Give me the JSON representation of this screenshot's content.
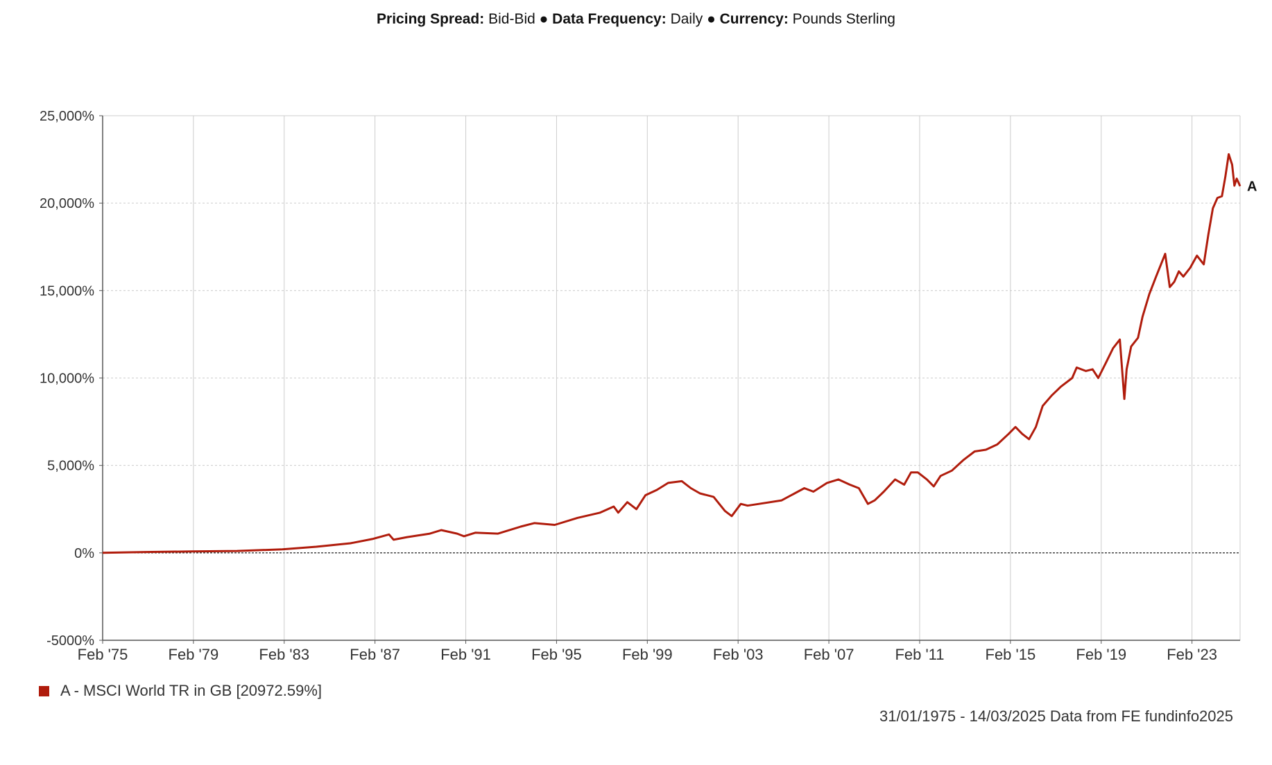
{
  "header": {
    "label1": "Pricing Spread:",
    "value1": "Bid-Bid",
    "label2": "Data Frequency:",
    "value2": "Daily",
    "label3": "Currency:",
    "value3": "Pounds Sterling",
    "separator": "●"
  },
  "legend": {
    "text": "A - MSCI World TR in GB [20972.59%]"
  },
  "source": {
    "text": "31/01/1975 - 14/03/2025 Data from FE fundinfo2025"
  },
  "colors": {
    "series": "#b01c0c",
    "grid": "#cccccc",
    "zero_line": "#333333",
    "axis": "#555555"
  },
  "chart_data": {
    "type": "line",
    "title": "",
    "xlabel": "",
    "ylabel": "",
    "ylim": [
      -5000,
      25000
    ],
    "xlim": [
      1975.08,
      2025.2
    ],
    "y_ticks": [
      25000,
      20000,
      15000,
      10000,
      5000,
      0,
      -5000
    ],
    "y_tick_labels": [
      "25,000%",
      "20,000%",
      "15,000%",
      "10,000%",
      "5,000%",
      "0%",
      "-5000%"
    ],
    "x_ticks": [
      1975.08,
      1979.08,
      1983.08,
      1987.08,
      1991.08,
      1995.08,
      1999.08,
      2003.08,
      2007.08,
      2011.08,
      2015.08,
      2019.08,
      2023.08
    ],
    "x_tick_labels": [
      "Feb '75",
      "Feb '79",
      "Feb '83",
      "Feb '87",
      "Feb '91",
      "Feb '95",
      "Feb '99",
      "Feb '03",
      "Feb '07",
      "Feb '11",
      "Feb '15",
      "Feb '19",
      "Feb '23"
    ],
    "grid": true,
    "legend_position": "bottom-left",
    "series": [
      {
        "name": "A - MSCI World TR in GB [20972.59%]",
        "end_label": "A",
        "x": [
          1975.08,
          1977.0,
          1979.0,
          1981.0,
          1983.0,
          1984.5,
          1986.0,
          1987.0,
          1987.7,
          1987.9,
          1988.5,
          1989.5,
          1990.0,
          1990.7,
          1991.0,
          1991.5,
          1992.5,
          1993.5,
          1994.1,
          1995.0,
          1996.0,
          1997.0,
          1997.6,
          1997.8,
          1998.2,
          1998.6,
          1999.0,
          1999.5,
          2000.0,
          2000.6,
          2001.0,
          2001.4,
          2002.0,
          2002.5,
          2002.8,
          2003.2,
          2003.5,
          2004.0,
          2005.0,
          2006.0,
          2006.4,
          2007.0,
          2007.5,
          2008.0,
          2008.4,
          2008.8,
          2009.1,
          2009.5,
          2010.0,
          2010.4,
          2010.7,
          2011.0,
          2011.4,
          2011.7,
          2012.0,
          2012.5,
          2013.0,
          2013.5,
          2014.0,
          2014.5,
          2015.0,
          2015.3,
          2015.6,
          2015.9,
          2016.2,
          2016.5,
          2016.9,
          2017.3,
          2017.8,
          2018.0,
          2018.4,
          2018.7,
          2018.95,
          2019.3,
          2019.6,
          2019.9,
          2020.1,
          2020.2,
          2020.4,
          2020.7,
          2020.9,
          2021.2,
          2021.5,
          2021.9,
          2022.1,
          2022.3,
          2022.5,
          2022.7,
          2023.0,
          2023.3,
          2023.6,
          2023.8,
          2024.0,
          2024.2,
          2024.4,
          2024.55,
          2024.7,
          2024.85,
          2024.95,
          2025.05,
          2025.2
        ],
        "y": [
          0,
          50,
          80,
          110,
          200,
          350,
          550,
          800,
          1050,
          750,
          900,
          1100,
          1300,
          1100,
          950,
          1150,
          1100,
          1500,
          1700,
          1600,
          2000,
          2300,
          2650,
          2300,
          2900,
          2500,
          3300,
          3600,
          4000,
          4100,
          3700,
          3400,
          3200,
          2400,
          2100,
          2800,
          2700,
          2800,
          3000,
          3700,
          3500,
          4000,
          4200,
          3900,
          3700,
          2800,
          3000,
          3500,
          4200,
          3900,
          4600,
          4600,
          4200,
          3800,
          4400,
          4700,
          5300,
          5800,
          5900,
          6200,
          6800,
          7200,
          6800,
          6500,
          7200,
          8400,
          9000,
          9500,
          10000,
          10600,
          10400,
          10500,
          10000,
          10900,
          11700,
          12200,
          8800,
          10500,
          11800,
          12300,
          13500,
          14800,
          15800,
          17100,
          15200,
          15500,
          16100,
          15800,
          16300,
          17000,
          16500,
          18200,
          19700,
          20300,
          20400,
          21500,
          22800,
          22200,
          21000,
          21400,
          20972.59
        ]
      }
    ]
  }
}
